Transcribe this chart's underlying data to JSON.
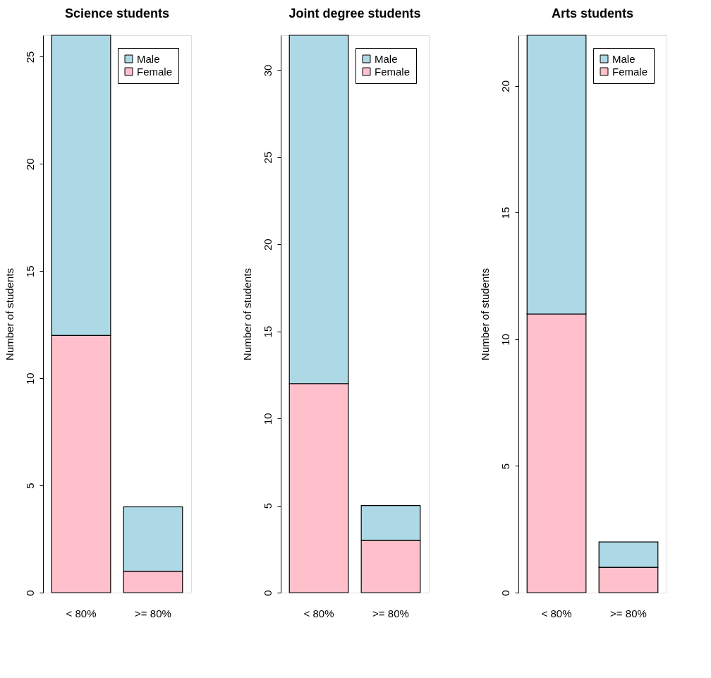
{
  "chart_data": [
    {
      "type": "bar",
      "title": "Science students",
      "ylabel": "Number of students",
      "categories": [
        "< 80%",
        ">= 80%"
      ],
      "stacked": true,
      "legend": "top right",
      "grid": false,
      "ylim": [
        0,
        26
      ],
      "yticks": [
        0,
        5,
        10,
        15,
        20,
        25
      ],
      "series": [
        {
          "name": "Female",
          "color": "#ffc0cb",
          "values": [
            12,
            1
          ]
        },
        {
          "name": "Male",
          "color": "#add8e6",
          "values": [
            14,
            3
          ]
        }
      ]
    },
    {
      "type": "bar",
      "title": "Joint degree students",
      "ylabel": "Number of students",
      "categories": [
        "< 80%",
        ">= 80%"
      ],
      "stacked": true,
      "legend": "top right",
      "grid": false,
      "ylim": [
        0,
        32
      ],
      "yticks": [
        0,
        5,
        10,
        15,
        20,
        25,
        30
      ],
      "series": [
        {
          "name": "Female",
          "color": "#ffc0cb",
          "values": [
            12,
            3
          ]
        },
        {
          "name": "Male",
          "color": "#add8e6",
          "values": [
            20,
            2
          ]
        }
      ]
    },
    {
      "type": "bar",
      "title": "Arts students",
      "ylabel": "Number of students",
      "categories": [
        "< 80%",
        ">= 80%"
      ],
      "stacked": true,
      "legend": "top right",
      "grid": false,
      "ylim": [
        0,
        22
      ],
      "yticks": [
        0,
        5,
        10,
        15,
        20
      ],
      "series": [
        {
          "name": "Female",
          "color": "#ffc0cb",
          "values": [
            11,
            1
          ]
        },
        {
          "name": "Male",
          "color": "#add8e6",
          "values": [
            11,
            1
          ]
        }
      ]
    }
  ]
}
